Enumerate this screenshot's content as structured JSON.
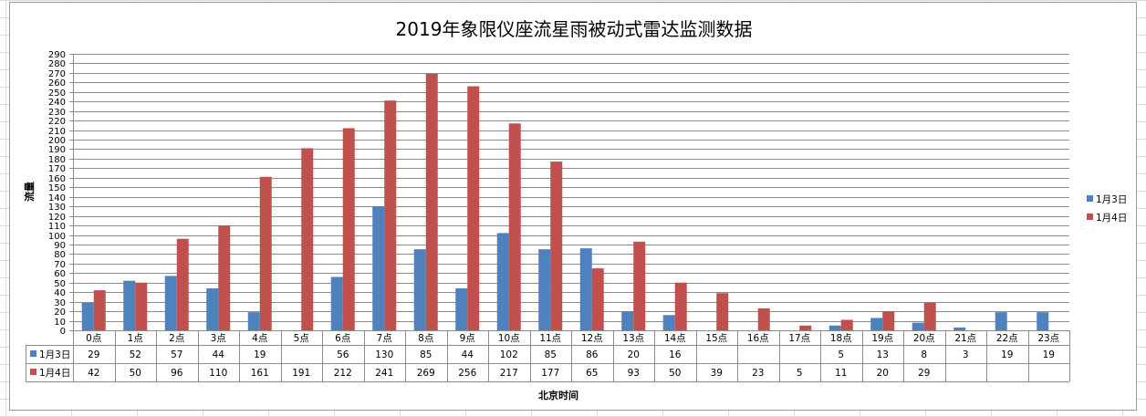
{
  "chart_data": {
    "type": "bar",
    "title": "2019年象限仪座流星雨被动式雷达监测数据",
    "xlabel": "北京时间",
    "ylabel": "流量",
    "categories": [
      "0点",
      "1点",
      "2点",
      "3点",
      "4点",
      "5点",
      "6点",
      "7点",
      "8点",
      "9点",
      "10点",
      "11点",
      "12点",
      "13点",
      "14点",
      "15点",
      "16点",
      "17点",
      "18点",
      "19点",
      "20点",
      "21点",
      "22点",
      "23点"
    ],
    "series": [
      {
        "name": "1月3日",
        "color": "#4F81BD",
        "values": [
          29,
          52,
          57,
          44,
          19,
          null,
          56,
          130,
          85,
          44,
          102,
          85,
          86,
          20,
          16,
          null,
          null,
          null,
          5,
          13,
          8,
          3,
          19,
          19
        ]
      },
      {
        "name": "1月4日",
        "color": "#C0504D",
        "values": [
          42,
          50,
          96,
          110,
          161,
          191,
          212,
          241,
          269,
          256,
          217,
          177,
          65,
          93,
          50,
          39,
          23,
          5,
          11,
          20,
          29,
          null,
          null,
          null
        ]
      }
    ],
    "ylim": [
      0,
      290
    ],
    "yticks": [
      0,
      10,
      20,
      30,
      40,
      50,
      60,
      70,
      80,
      90,
      100,
      110,
      120,
      130,
      140,
      150,
      160,
      170,
      180,
      190,
      200,
      210,
      220,
      230,
      240,
      250,
      260,
      270,
      280,
      290
    ],
    "grid": true,
    "legend_position": "right",
    "data_table": true
  }
}
